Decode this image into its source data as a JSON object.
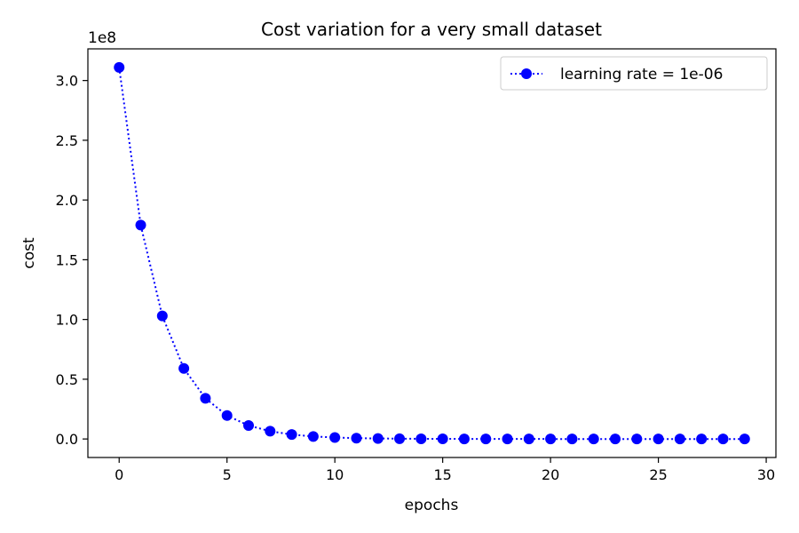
{
  "chart_data": {
    "type": "line",
    "title": "Cost variation for a very small dataset",
    "xlabel": "epochs",
    "ylabel": "cost",
    "y_offset_label": "1e8",
    "xlim": [
      -1.45,
      30.45
    ],
    "ylim": [
      -0.155,
      3.265
    ],
    "xticks": [
      0,
      5,
      10,
      15,
      20,
      25,
      30
    ],
    "xtick_labels": [
      "0",
      "5",
      "10",
      "15",
      "20",
      "25",
      "30"
    ],
    "yticks": [
      0.0,
      0.5,
      1.0,
      1.5,
      2.0,
      2.5,
      3.0
    ],
    "ytick_labels": [
      "0.0",
      "0.5",
      "1.0",
      "1.5",
      "2.0",
      "2.5",
      "3.0"
    ],
    "grid": false,
    "legend_position": "top-right",
    "series": [
      {
        "name": "learning rate = 1e-06",
        "color": "#0000ff",
        "line_style": "dotted",
        "marker": "circle",
        "x": [
          0,
          1,
          2,
          3,
          4,
          5,
          6,
          7,
          8,
          9,
          10,
          11,
          12,
          13,
          14,
          15,
          16,
          17,
          18,
          19,
          20,
          21,
          22,
          23,
          24,
          25,
          26,
          27,
          28,
          29
        ],
        "y": [
          3.11,
          1.79,
          1.03,
          0.59,
          0.34,
          0.196,
          0.113,
          0.065,
          0.037,
          0.021,
          0.012,
          0.007,
          0.004,
          0.0023,
          0.0013,
          0.0008,
          0.0004,
          0.0002,
          0.0001,
          0.0001,
          0,
          0,
          0,
          0,
          0,
          0,
          0,
          0,
          0,
          0
        ]
      }
    ]
  }
}
